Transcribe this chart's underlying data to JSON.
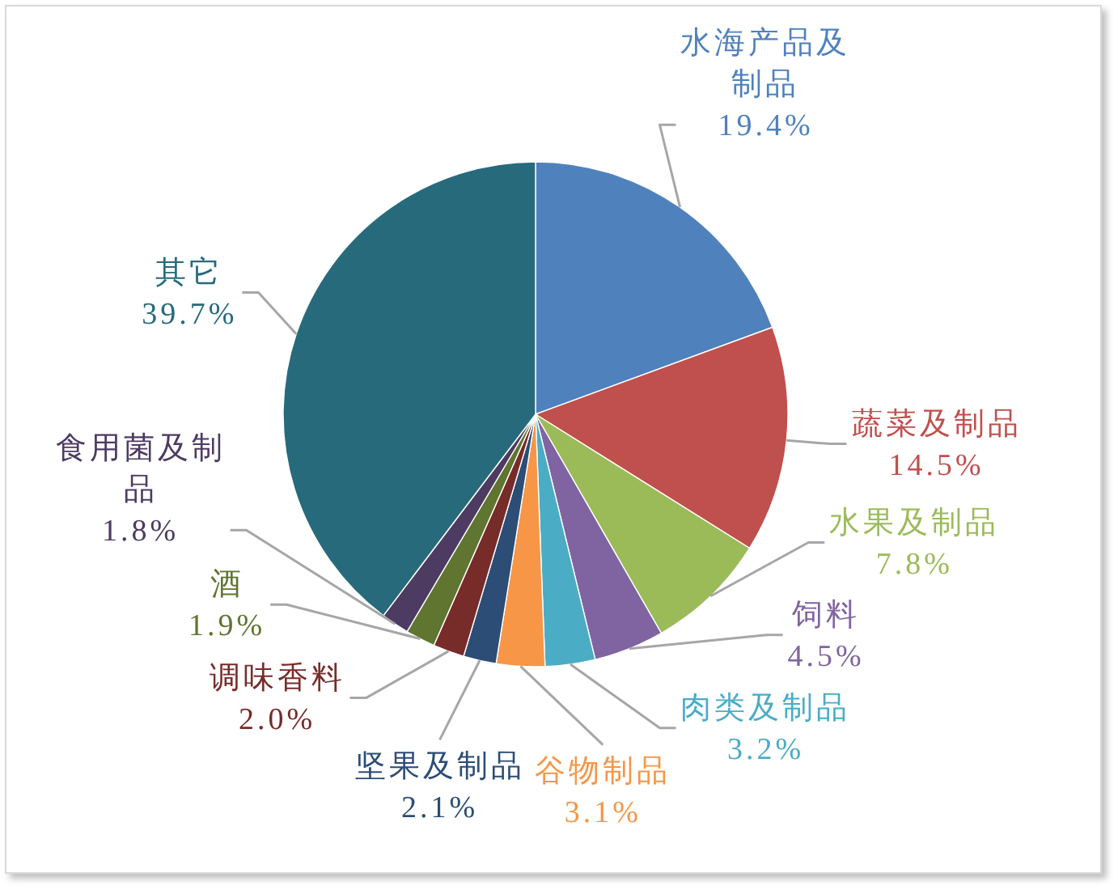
{
  "chart_data": {
    "type": "pie",
    "categories": [
      "水海产品及制品",
      "蔬菜及制品",
      "水果及制品",
      "饲料",
      "肉类及制品",
      "谷物制品",
      "坚果及制品",
      "调味香料",
      "酒",
      "食用菌及制品",
      "其它"
    ],
    "values": [
      19.4,
      14.5,
      7.8,
      4.5,
      3.2,
      3.1,
      2.1,
      2.0,
      1.9,
      1.8,
      39.7
    ],
    "colors": [
      "#4f81bd",
      "#c0504d",
      "#9bbb59",
      "#8064a2",
      "#4bacc6",
      "#f79646",
      "#2c4d75",
      "#772c2a",
      "#5f7530",
      "#4d3b62",
      "#276a7c"
    ],
    "value_labels": [
      "19.4%",
      "14.5%",
      "7.8%",
      "4.5%",
      "3.2%",
      "3.1%",
      "2.1%",
      "2.0%",
      "1.9%",
      "1.8%",
      "39.7%"
    ]
  }
}
